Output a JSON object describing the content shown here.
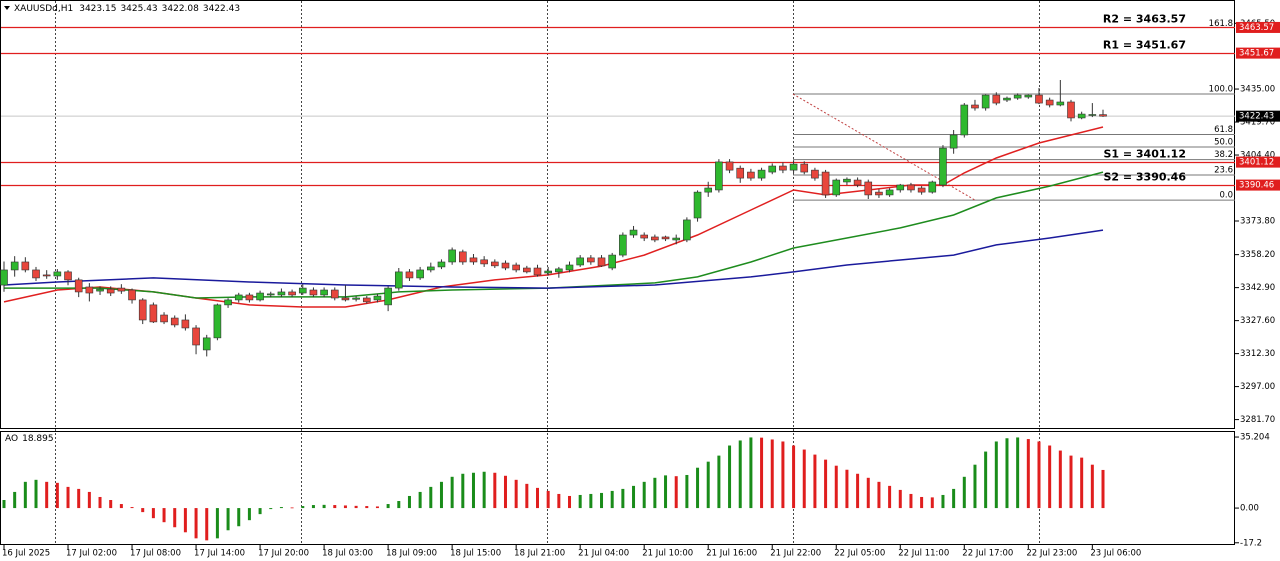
{
  "header": {
    "symbol": "XAUUSDd,H1"
  },
  "chart_data": [
    {
      "type": "candlestick",
      "candles": [
        [
          3344.1,
          3355.0,
          3341.0,
          3351.1
        ],
        [
          3351.1,
          3357.5,
          3348.0,
          3354.8
        ],
        [
          3354.8,
          3357.0,
          3350.0,
          3351.1
        ],
        [
          3351.1,
          3352.5,
          3346.0,
          3347.4
        ],
        [
          3348.8,
          3351.0,
          3347.0,
          3348.3
        ],
        [
          3348.3,
          3351.5,
          3346.5,
          3350.2
        ],
        [
          3350.2,
          3351.0,
          3344.0,
          3346.5
        ],
        [
          3346.5,
          3347.5,
          3338.5,
          3340.9
        ],
        [
          3343.2,
          3345.0,
          3336.5,
          3340.4
        ],
        [
          3341.3,
          3343.5,
          3339.5,
          3342.2
        ],
        [
          3342.2,
          3343.5,
          3339.0,
          3340.4
        ],
        [
          3342.7,
          3344.5,
          3340.0,
          3341.3
        ],
        [
          3341.8,
          3342.5,
          3335.5,
          3337.2
        ],
        [
          3337.2,
          3338.0,
          3326.0,
          3327.9
        ],
        [
          3334.9,
          3336.0,
          3326.5,
          3327.0
        ],
        [
          3330.2,
          3331.5,
          3326.0,
          3327.0
        ],
        [
          3328.8,
          3330.0,
          3324.5,
          3325.6
        ],
        [
          3327.9,
          3330.5,
          3323.0,
          3324.2
        ],
        [
          3324.2,
          3325.5,
          3312.0,
          3316.3
        ],
        [
          3314.0,
          3321.0,
          3311.0,
          3319.6
        ],
        [
          3319.6,
          3335.5,
          3318.5,
          3334.9
        ],
        [
          3334.9,
          3338.0,
          3333.5,
          3337.2
        ],
        [
          3337.2,
          3340.5,
          3336.0,
          3339.5
        ],
        [
          3339.5,
          3340.5,
          3336.0,
          3337.2
        ],
        [
          3337.2,
          3341.5,
          3336.5,
          3340.4
        ],
        [
          3339.5,
          3341.0,
          3338.5,
          3340.0
        ],
        [
          3339.5,
          3342.5,
          3338.5,
          3340.9
        ],
        [
          3340.9,
          3342.0,
          3338.5,
          3339.5
        ],
        [
          3340.4,
          3344.5,
          3339.5,
          3342.7
        ],
        [
          3341.8,
          3343.0,
          3338.5,
          3339.5
        ],
        [
          3339.5,
          3343.0,
          3338.5,
          3341.8
        ],
        [
          3341.8,
          3343.0,
          3337.0,
          3338.1
        ],
        [
          3338.1,
          3344.1,
          3336.5,
          3337.2
        ],
        [
          3337.5,
          3339.0,
          3336.5,
          3338.1
        ],
        [
          3338.1,
          3339.0,
          3335.5,
          3336.3
        ],
        [
          3337.2,
          3340.0,
          3336.0,
          3339.0
        ],
        [
          3334.9,
          3343.5,
          3332.0,
          3342.7
        ],
        [
          3342.7,
          3352.0,
          3341.5,
          3350.2
        ],
        [
          3350.2,
          3351.5,
          3346.0,
          3347.4
        ],
        [
          3347.4,
          3352.5,
          3346.5,
          3351.1
        ],
        [
          3351.1,
          3354.5,
          3350.0,
          3352.5
        ],
        [
          3352.5,
          3356.0,
          3351.5,
          3354.8
        ],
        [
          3354.8,
          3361.5,
          3353.5,
          3360.4
        ],
        [
          3359.5,
          3360.5,
          3353.5,
          3354.8
        ],
        [
          3356.7,
          3358.5,
          3353.5,
          3354.8
        ],
        [
          3355.8,
          3357.5,
          3352.5,
          3353.9
        ],
        [
          3354.8,
          3356.0,
          3352.0,
          3353.0
        ],
        [
          3354.3,
          3355.5,
          3351.0,
          3352.0
        ],
        [
          3353.4,
          3354.5,
          3350.0,
          3351.1
        ],
        [
          3352.0,
          3353.0,
          3349.5,
          3350.2
        ],
        [
          3352.0,
          3353.5,
          3348.0,
          3348.8
        ],
        [
          3349.7,
          3352.5,
          3348.5,
          3350.6
        ],
        [
          3350.2,
          3352.5,
          3347.5,
          3351.6
        ],
        [
          3351.1,
          3355.0,
          3350.0,
          3353.4
        ],
        [
          3353.4,
          3358.0,
          3352.5,
          3356.7
        ],
        [
          3356.7,
          3358.0,
          3353.5,
          3354.8
        ],
        [
          3356.7,
          3358.0,
          3352.5,
          3353.0
        ],
        [
          3352.0,
          3359.0,
          3351.0,
          3358.0
        ],
        [
          3358.0,
          3368.5,
          3357.0,
          3367.3
        ],
        [
          3367.3,
          3371.5,
          3366.0,
          3369.6
        ],
        [
          3367.3,
          3368.5,
          3364.5,
          3365.9
        ],
        [
          3366.4,
          3367.5,
          3364.0,
          3365.0
        ],
        [
          3366.4,
          3367.0,
          3364.5,
          3365.5
        ],
        [
          3365.0,
          3367.5,
          3363.0,
          3365.9
        ],
        [
          3365.0,
          3375.5,
          3364.0,
          3374.3
        ],
        [
          3375.2,
          3388.0,
          3373.5,
          3387.2
        ],
        [
          3387.2,
          3392.0,
          3385.0,
          3389.1
        ],
        [
          3388.2,
          3402.5,
          3387.0,
          3401.2
        ],
        [
          3401.2,
          3402.5,
          3396.0,
          3397.4
        ],
        [
          3398.3,
          3399.5,
          3391.5,
          3393.7
        ],
        [
          3396.5,
          3398.0,
          3392.5,
          3393.7
        ],
        [
          3393.7,
          3398.5,
          3392.5,
          3397.4
        ],
        [
          3396.5,
          3400.5,
          3395.5,
          3399.3
        ],
        [
          3399.3,
          3401.0,
          3396.0,
          3397.4
        ],
        [
          3397.4,
          3402.0,
          3396.0,
          3400.2
        ],
        [
          3400.2,
          3401.5,
          3395.5,
          3396.5
        ],
        [
          3397.4,
          3398.5,
          3392.5,
          3393.7
        ],
        [
          3396.5,
          3397.5,
          3384.5,
          3385.9
        ],
        [
          3385.9,
          3393.5,
          3385.0,
          3392.8
        ],
        [
          3391.9,
          3394.0,
          3390.5,
          3393.2
        ],
        [
          3392.8,
          3394.0,
          3389.5,
          3390.5
        ],
        [
          3391.9,
          3393.0,
          3384.0,
          3385.9
        ],
        [
          3387.2,
          3388.5,
          3384.5,
          3385.9
        ],
        [
          3385.9,
          3389.0,
          3385.0,
          3388.2
        ],
        [
          3388.2,
          3391.0,
          3387.0,
          3390.5
        ],
        [
          3390.5,
          3391.5,
          3387.0,
          3388.2
        ],
        [
          3389.1,
          3390.0,
          3386.0,
          3387.2
        ],
        [
          3387.2,
          3392.5,
          3386.5,
          3391.9
        ],
        [
          3390.5,
          3409.0,
          3389.5,
          3407.6
        ],
        [
          3407.6,
          3416.0,
          3405.0,
          3413.7
        ],
        [
          3413.7,
          3428.5,
          3412.5,
          3427.6
        ],
        [
          3427.6,
          3430.0,
          3425.0,
          3426.2
        ],
        [
          3426.2,
          3432.5,
          3425.0,
          3432.2
        ],
        [
          3432.2,
          3433.5,
          3427.5,
          3428.5
        ],
        [
          3429.9,
          3431.5,
          3429.0,
          3430.8
        ],
        [
          3430.8,
          3433.0,
          3430.0,
          3432.2
        ],
        [
          3431.3,
          3432.5,
          3430.5,
          3432.2
        ],
        [
          3432.2,
          3435.5,
          3428.0,
          3428.5
        ],
        [
          3429.9,
          3431.0,
          3426.5,
          3427.6
        ],
        [
          3427.6,
          3439.2,
          3427.0,
          3429.0
        ],
        [
          3429.0,
          3430.0,
          3420.0,
          3421.6
        ],
        [
          3421.6,
          3424.5,
          3421.0,
          3423.4
        ],
        [
          3422.9,
          3428.5,
          3422.0,
          3423.2
        ],
        [
          3423.15,
          3425.43,
          3422.08,
          3422.43
        ]
      ],
      "colors": {
        "up": "#2eb82e",
        "down": "#e8463c"
      },
      "ylim": [
        3277.8,
        3476.3
      ],
      "yticks": [
        {
          "value": 3465.5,
          "label": "3465.50"
        },
        {
          "value": 3435,
          "label": "3435.00"
        },
        {
          "value": 3419.7,
          "label": "3419.70"
        },
        {
          "value": 3404.4,
          "label": "3404.40"
        },
        {
          "value": 3373.8,
          "label": "3373.80"
        },
        {
          "value": 3358.2,
          "label": "3358.20"
        },
        {
          "value": 3342.9,
          "label": "3342.90"
        },
        {
          "value": 3327.6,
          "label": "3327.60"
        },
        {
          "value": 3312.3,
          "label": "3312.30"
        },
        {
          "value": 3297,
          "label": "3297.00"
        },
        {
          "value": 3281.7,
          "label": "3281.70"
        }
      ],
      "moving_averages": [
        {
          "color": "#e02020",
          "x": [
            0,
            5,
            9,
            14,
            18,
            23,
            28,
            32,
            36,
            41,
            46,
            51,
            56,
            60,
            65,
            70,
            74,
            77,
            81,
            85,
            88,
            90,
            93,
            97,
            100,
            103
          ],
          "values": [
            3336.3,
            3341.8,
            3343.2,
            3340.9,
            3338.1,
            3334.9,
            3333.9,
            3333.9,
            3337.2,
            3343.2,
            3346.5,
            3348.8,
            3352.9,
            3358.0,
            3367.3,
            3378.9,
            3388.2,
            3385.9,
            3388.2,
            3390.5,
            3390.5,
            3396.1,
            3403.0,
            3410.0,
            3413.7,
            3417.4
          ]
        },
        {
          "color": "#1e8c1e",
          "x": [
            0,
            9,
            14,
            18,
            23,
            28,
            32,
            37,
            42,
            51,
            61,
            65,
            70,
            74,
            79,
            84,
            89,
            93,
            98,
            103
          ],
          "values": [
            3342.7,
            3342.7,
            3340.9,
            3338.1,
            3338.6,
            3338.6,
            3338.6,
            3340.9,
            3341.8,
            3342.7,
            3345.1,
            3347.9,
            3354.8,
            3361.3,
            3365.9,
            3370.6,
            3376.6,
            3384.5,
            3390.0,
            3396.5
          ]
        },
        {
          "color": "#1a1a9c",
          "x": [
            0,
            5,
            14,
            23,
            32,
            42,
            51,
            61,
            70,
            74,
            79,
            84,
            89,
            93,
            98,
            103
          ],
          "values": [
            3344.1,
            3345.5,
            3347.4,
            3345.5,
            3344.1,
            3343.2,
            3342.7,
            3344.1,
            3347.9,
            3350.2,
            3353.4,
            3355.7,
            3358.0,
            3362.7,
            3365.9,
            3369.6
          ]
        }
      ],
      "levels": [
        {
          "label": "R2 = 3463.57",
          "value": 3463.57
        },
        {
          "label": "R1 = 3451.67",
          "value": 3451.67
        },
        {
          "label": "S1 = 3401.12",
          "value": 3401.12
        },
        {
          "label": "S2 = 3390.46",
          "value": 3390.46
        }
      ],
      "level_color": "#e01e1e",
      "fibonacci": {
        "low": 3383.5,
        "high": 3432.7,
        "levels": [
          {
            "value": 161.8,
            "label": "161.8"
          },
          {
            "value": 100,
            "label": "100.0"
          },
          61.8,
          {
            "value": 50,
            "label": "50.0"
          },
          38.2,
          23.6,
          {
            "value": 0,
            "label": "0.0"
          }
        ]
      },
      "x_labels": [
        "16 Jul 2025",
        "17 Jul 02:00",
        "17 Jul 08:00",
        "17 Jul 14:00",
        "17 Jul 20:00",
        "18 Jul 03:00",
        "18 Jul 09:00",
        "18 Jul 15:00",
        "18 Jul 21:00",
        "21 Jul 04:00",
        "21 Jul 10:00",
        "21 Jul 16:00",
        "21 Jul 22:00",
        "22 Jul 05:00",
        "22 Jul 11:00",
        "22 Jul 17:00",
        "22 Jul 23:00",
        "23 Jul 06:00"
      ]
    },
    {
      "type": "bar",
      "title": "AO",
      "values": [
        4.0,
        8.0,
        13.0,
        14.0,
        13.0,
        12.5,
        10.5,
        9.5,
        8.0,
        5.5,
        4.0,
        2.0,
        0.5,
        -2.0,
        -5.0,
        -7.0,
        -9.5,
        -12.0,
        -15.0,
        -16.0,
        -15.0,
        -11.0,
        -9.0,
        -6.0,
        -3.0,
        -0.5,
        0.5,
        0.3,
        1.0,
        1.5,
        1.6,
        1.5,
        1.3,
        1.1,
        1.0,
        0.8,
        2.0,
        3.5,
        6.0,
        8.0,
        10.5,
        13.0,
        15.5,
        17.0,
        17.5,
        18.0,
        17.5,
        16.0,
        14.0,
        12.0,
        10.0,
        8.5,
        7.0,
        6.0,
        6.5,
        7.0,
        7.5,
        8.5,
        9.5,
        11.0,
        13.0,
        15.0,
        16.2,
        15.8,
        16.4,
        20.0,
        23.0,
        26.0,
        31.0,
        33.5,
        35.0,
        34.9,
        34.0,
        33.0,
        31.0,
        29.0,
        26.5,
        24.0,
        21.0,
        19.0,
        17.0,
        15.0,
        13.0,
        11.0,
        9.0,
        7.0,
        5.5,
        5.3,
        6.5,
        9.5,
        15.5,
        21.5,
        28.0,
        33.0,
        34.6,
        35.0,
        34.2,
        33.0,
        31.0,
        28.5,
        26.0,
        25.0,
        21.5,
        18.895
      ],
      "colors": {
        "up": "#1a8c1a",
        "down": "#e01e1e"
      },
      "ylim": [
        -18.3,
        37.7
      ],
      "yticks": [
        35.204,
        {
          "value": 0,
          "label": "0.00"
        },
        -17.2
      ]
    }
  ]
}
